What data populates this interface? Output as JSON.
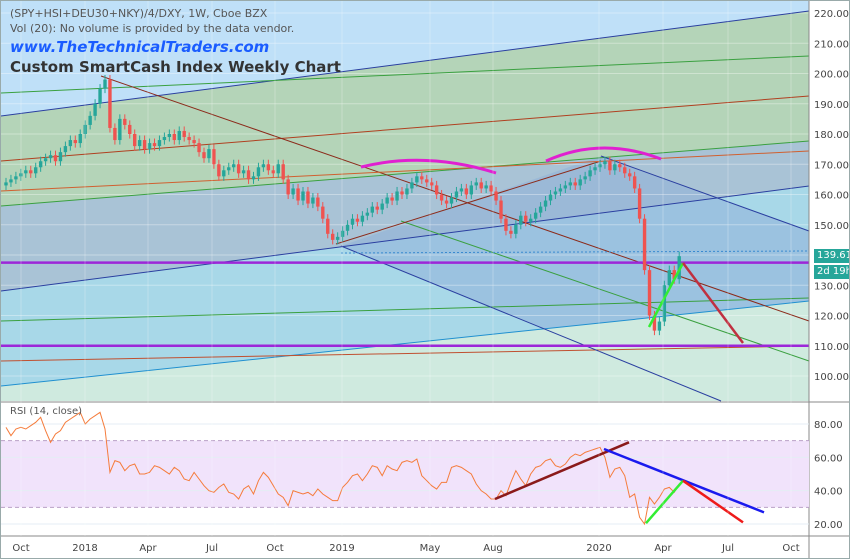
{
  "header": {
    "symbol_line": "(SPY+HSI+DEU30+NKY)/4/DXY, 1W, Cboe BZX",
    "volume_note": "Vol (20): No volume is provided by the data vendor.",
    "website": "www.TheTechnicalTraders.com",
    "chart_title": "Custom SmartCash Index Weekly Chart"
  },
  "price_label": {
    "last": "139.61",
    "countdown": "2d 19h"
  },
  "colors": {
    "up": "#26a69a",
    "down": "#ef5350",
    "rsi_line": "#f57c3c",
    "horizontal_level": "#9c27d8",
    "arc": "#e020d0",
    "rsi_band": "#f1e3fb"
  },
  "chart_data": [
    {
      "type": "candlestick",
      "title": "Custom SmartCash Index Weekly Chart",
      "interval": "1W",
      "x_ticks": [
        "Oct",
        "2018",
        "Apr",
        "Jul",
        "Oct",
        "2019",
        "May",
        "Aug",
        "2020",
        "Apr",
        "Jul",
        "Oct"
      ],
      "y_ticks": [
        "100.00",
        "110.00",
        "120.00",
        "130.00",
        "150.00",
        "160.00",
        "170.00",
        "180.00",
        "190.00",
        "200.00",
        "210.00",
        "220.00"
      ],
      "ylim": [
        95,
        222
      ],
      "closes": [
        164,
        165,
        166,
        167,
        168,
        167,
        169,
        171,
        172,
        173,
        171,
        174,
        176,
        178,
        177,
        180,
        183,
        186,
        190,
        195,
        198,
        182,
        178,
        185,
        183,
        180,
        176,
        178,
        175,
        177,
        176,
        178,
        179,
        180,
        178,
        181,
        179,
        178,
        177,
        174,
        172,
        175,
        170,
        166,
        168,
        169,
        170,
        167,
        168,
        165,
        166,
        169,
        170,
        168,
        167,
        170,
        165,
        160,
        162,
        158,
        161,
        157,
        159,
        156,
        152,
        147,
        145,
        146,
        148,
        150,
        152,
        151,
        153,
        154,
        156,
        155,
        157,
        159,
        158,
        161,
        160,
        162,
        164,
        166,
        165,
        164,
        163,
        160,
        158,
        157,
        159,
        161,
        162,
        160,
        163,
        164,
        162,
        163,
        161,
        158,
        152,
        148,
        147,
        150,
        153,
        151,
        152,
        154,
        156,
        158,
        160,
        161,
        162,
        163,
        164,
        163,
        165,
        166,
        168,
        169,
        170,
        171,
        168,
        170,
        169,
        167,
        166,
        162,
        152,
        135,
        120,
        115,
        118,
        130,
        135,
        132,
        139.61
      ],
      "horizontal_levels": [
        137.5,
        110
      ]
    },
    {
      "type": "line",
      "title": "RSI (14, close)",
      "y_ticks": [
        "20.00",
        "40.00",
        "60.00",
        "80.00"
      ],
      "ylim": [
        15,
        95
      ],
      "band": [
        30,
        70
      ],
      "values": [
        78,
        73,
        77,
        78,
        77,
        79,
        81,
        84,
        76,
        69,
        74,
        76,
        81,
        83,
        85,
        87,
        80,
        83,
        85,
        87,
        77,
        51,
        58,
        57,
        52,
        55,
        56,
        50,
        50,
        51,
        55,
        54,
        52,
        50,
        54,
        52,
        47,
        46,
        51,
        47,
        43,
        40,
        39,
        42,
        44,
        39,
        38,
        35,
        41,
        43,
        38,
        46,
        51,
        48,
        43,
        38,
        36,
        31,
        40,
        39,
        38,
        39,
        37,
        41,
        38,
        36,
        34,
        34,
        42,
        45,
        49,
        50,
        46,
        50,
        55,
        54,
        49,
        55,
        53,
        52,
        57,
        58,
        57,
        59,
        49,
        46,
        43,
        41,
        45,
        45,
        54,
        55,
        54,
        52,
        50,
        44,
        40,
        38,
        35,
        35,
        40,
        37,
        45,
        52,
        47,
        43,
        50,
        54,
        55,
        58,
        59,
        55,
        54,
        56,
        60,
        62,
        61,
        63,
        64,
        65,
        66,
        60,
        48,
        53,
        54,
        49,
        36,
        38,
        24,
        20,
        36,
        32,
        36,
        41,
        42,
        39,
        44
      ]
    }
  ]
}
